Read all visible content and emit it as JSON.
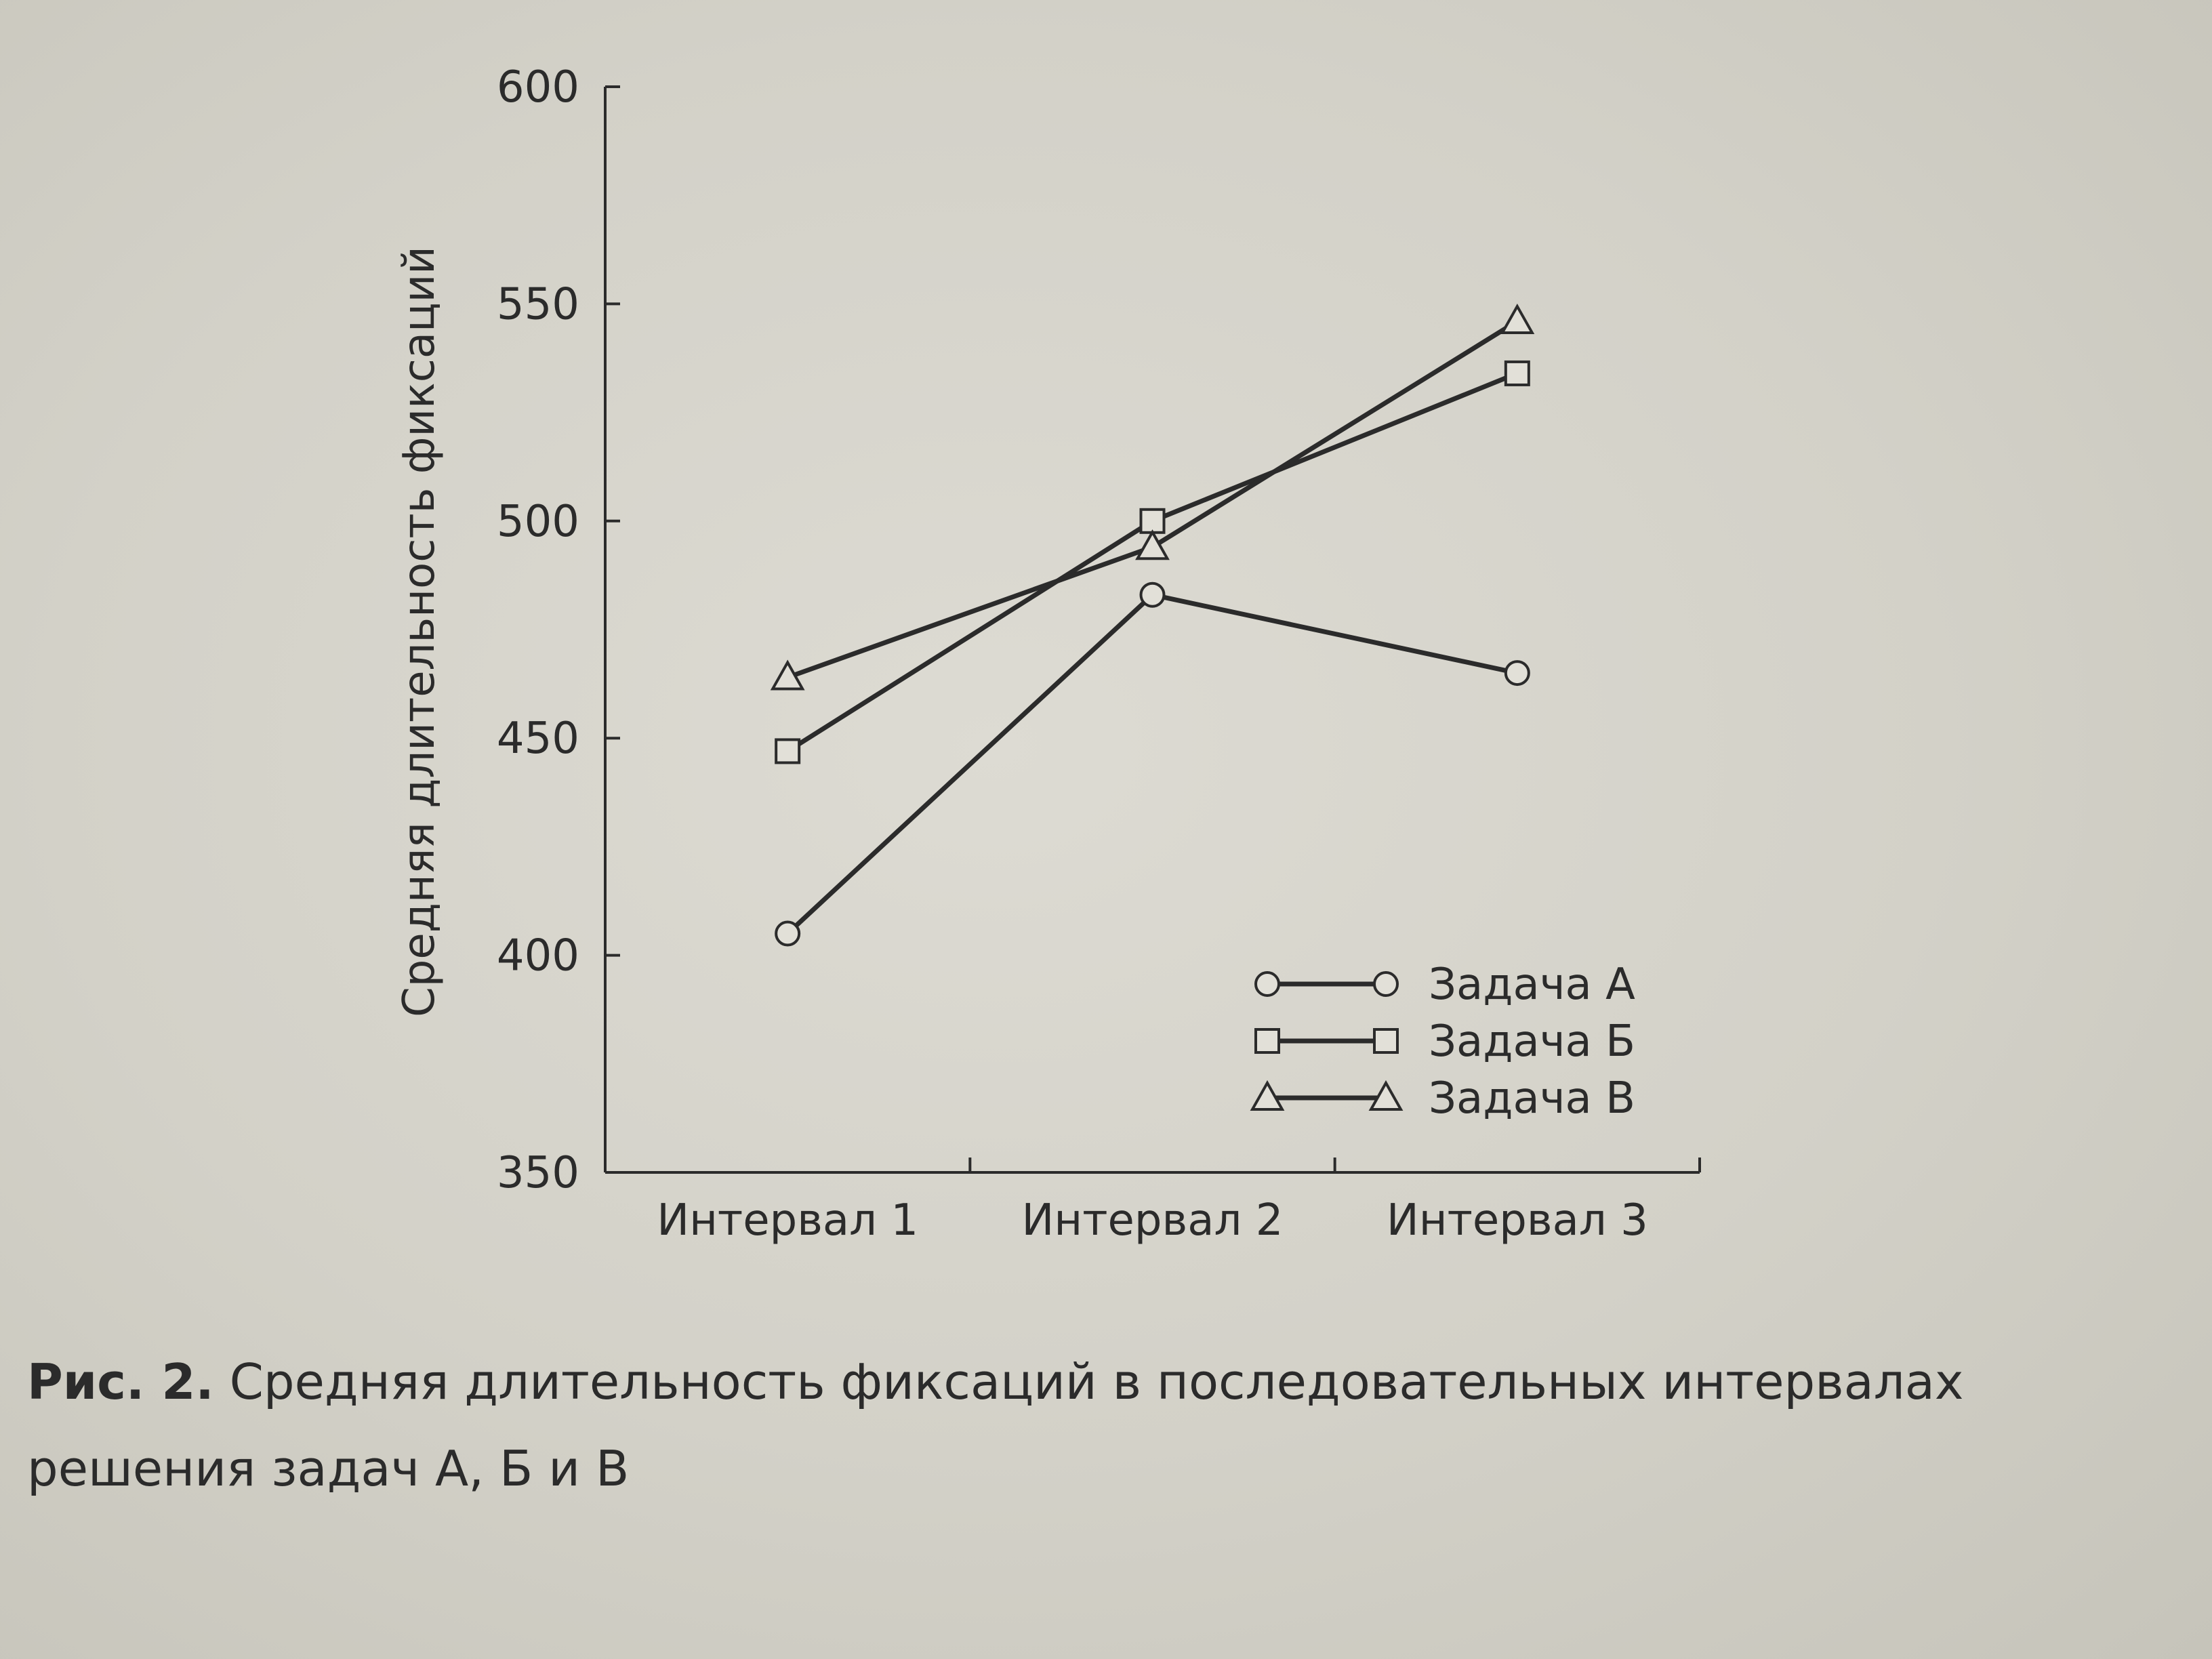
{
  "chart_data": {
    "type": "line",
    "categories": [
      "Интервал 1",
      "Интервал 2",
      "Интервал 3"
    ],
    "ylabel": "Средняя длительность фиксаций",
    "ylim": [
      350,
      600
    ],
    "yticks": [
      350,
      400,
      450,
      500,
      550,
      600
    ],
    "grid": false,
    "legend_position": "bottom-right",
    "series": [
      {
        "name": "Задача А",
        "marker": "circle",
        "values": [
          405,
          483,
          465
        ]
      },
      {
        "name": "Задача Б",
        "marker": "square",
        "values": [
          447,
          500,
          534
        ]
      },
      {
        "name": "Задача В",
        "marker": "triangle",
        "values": [
          464,
          494,
          546
        ]
      }
    ]
  },
  "caption": {
    "label": "Рис. 2.",
    "text": "Средняя длительность фиксаций в последовательных интервалах решения задач А, Б и В"
  },
  "colors": {
    "ink": "#2b2b2b",
    "paper": "#d8d6cd"
  }
}
